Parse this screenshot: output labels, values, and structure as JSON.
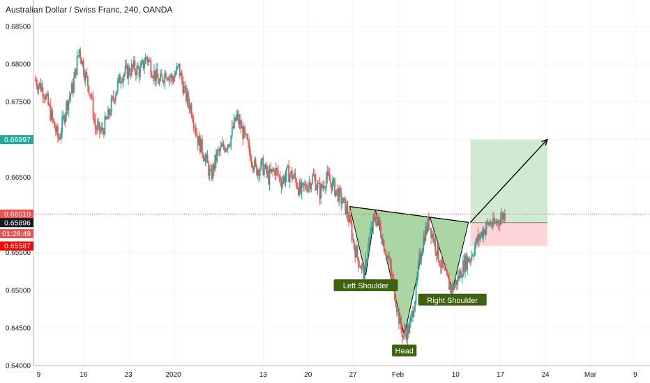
{
  "header": {
    "title": "Australian Dollar / Swiss Franc, 240, OANDA"
  },
  "chart_data": {
    "type": "candlestick",
    "symbol": "Australian Dollar / Swiss Franc",
    "timeframe": "240",
    "source": "OANDA",
    "ylim": [
      0.64,
      0.6885
    ],
    "y_ticks": [
      {
        "value": 0.64,
        "label": "0.64000"
      },
      {
        "value": 0.645,
        "label": "0.64500"
      },
      {
        "value": 0.65,
        "label": "0.65000"
      },
      {
        "value": 0.655,
        "label": "0.65500"
      },
      {
        "value": 0.66,
        "label": "0.66000"
      },
      {
        "value": 0.665,
        "label": "0.66500"
      },
      {
        "value": 0.67,
        "label": "0.67000"
      },
      {
        "value": 0.675,
        "label": "0.67500"
      },
      {
        "value": 0.68,
        "label": "0.68000"
      },
      {
        "value": 0.685,
        "label": "0.68500"
      }
    ],
    "x_ticks": [
      {
        "label": "9",
        "day": 0
      },
      {
        "label": "16",
        "day": 7
      },
      {
        "label": "23",
        "day": 14
      },
      {
        "label": "2020",
        "day": 21
      },
      {
        "label": "13",
        "day": 35
      },
      {
        "label": "20",
        "day": 42
      },
      {
        "label": "27",
        "day": 49
      },
      {
        "label": "Feb",
        "day": 56
      },
      {
        "label": "10",
        "day": 65
      },
      {
        "label": "17",
        "day": 72
      },
      {
        "label": "24",
        "day": 79
      },
      {
        "label": "Mar",
        "day": 86
      },
      {
        "label": "9",
        "day": 93
      }
    ],
    "x_range_days": [
      -0.8,
      95.3
    ],
    "price_path": [
      [
        -0.5,
        0.678
      ],
      [
        1.0,
        0.6765
      ],
      [
        2.5,
        0.672
      ],
      [
        3.3,
        0.67
      ],
      [
        4.5,
        0.6745
      ],
      [
        5.5,
        0.677
      ],
      [
        6.5,
        0.682
      ],
      [
        7.3,
        0.679
      ],
      [
        8.3,
        0.676
      ],
      [
        9.0,
        0.6715
      ],
      [
        10.0,
        0.671
      ],
      [
        11.0,
        0.673
      ],
      [
        12.0,
        0.676
      ],
      [
        13.0,
        0.6785
      ],
      [
        14.0,
        0.679
      ],
      [
        15.0,
        0.6795
      ],
      [
        16.0,
        0.679
      ],
      [
        17.0,
        0.681
      ],
      [
        18.0,
        0.679
      ],
      [
        19.0,
        0.6775
      ],
      [
        20.0,
        0.679
      ],
      [
        21.0,
        0.678
      ],
      [
        22.0,
        0.6795
      ],
      [
        23.0,
        0.676
      ],
      [
        24.0,
        0.674
      ],
      [
        25.0,
        0.67
      ],
      [
        26.0,
        0.668
      ],
      [
        27.0,
        0.665
      ],
      [
        28.0,
        0.668
      ],
      [
        29.0,
        0.669
      ],
      [
        30.0,
        0.67
      ],
      [
        31.0,
        0.673
      ],
      [
        32.0,
        0.671
      ],
      [
        33.0,
        0.6685
      ],
      [
        34.0,
        0.666
      ],
      [
        35.0,
        0.6665
      ],
      [
        36.0,
        0.665
      ],
      [
        37.0,
        0.666
      ],
      [
        38.0,
        0.6645
      ],
      [
        39.0,
        0.6655
      ],
      [
        40.0,
        0.665
      ],
      [
        41.0,
        0.663
      ],
      [
        42.0,
        0.664
      ],
      [
        43.0,
        0.665
      ],
      [
        44.0,
        0.663
      ],
      [
        45.0,
        0.665
      ],
      [
        46.0,
        0.664
      ],
      [
        47.0,
        0.6625
      ],
      [
        48.0,
        0.661
      ],
      [
        48.7,
        0.659
      ],
      [
        49.3,
        0.656
      ],
      [
        50.0,
        0.654
      ],
      [
        51.0,
        0.652
      ],
      [
        51.5,
        0.656
      ],
      [
        52.3,
        0.659
      ],
      [
        53.0,
        0.6595
      ],
      [
        54.0,
        0.656
      ],
      [
        55.0,
        0.653
      ],
      [
        56.0,
        0.648
      ],
      [
        56.6,
        0.645
      ],
      [
        57.0,
        0.644
      ],
      [
        58.0,
        0.645
      ],
      [
        59.0,
        0.65
      ],
      [
        59.5,
        0.654
      ],
      [
        60.3,
        0.6575
      ],
      [
        61.0,
        0.659
      ],
      [
        62.0,
        0.656
      ],
      [
        63.0,
        0.653
      ],
      [
        64.0,
        0.651
      ],
      [
        64.5,
        0.65
      ],
      [
        65.5,
        0.6515
      ],
      [
        66.5,
        0.6535
      ],
      [
        67.5,
        0.6545
      ],
      [
        68.5,
        0.6565
      ],
      [
        69.5,
        0.658
      ],
      [
        70.5,
        0.659
      ],
      [
        71.0,
        0.6585
      ],
      [
        72.0,
        0.6595
      ],
      [
        72.8,
        0.6601
      ]
    ],
    "price_labels": [
      {
        "value": 0.66997,
        "label": "0.66997",
        "color": "#26a69a"
      },
      {
        "value": 0.6601,
        "label": "0.66010",
        "color": "#ef5350"
      },
      {
        "value": 0.6575,
        "label": "01:26:49",
        "color": "#ef5350"
      },
      {
        "value": 0.65896,
        "label": "0.65896",
        "color": "#131722"
      },
      {
        "value": 0.65587,
        "label": "0.65587",
        "color": "#ff0000"
      }
    ],
    "current_price": 0.6601,
    "position": {
      "entry": 0.65896,
      "target": 0.66997,
      "stop": 0.65587,
      "start_day": 67.3,
      "end_day": 79.3
    },
    "pattern": {
      "name": "Inverse Head and Shoulders",
      "neckline": [
        [
          48.5,
          0.6611
        ],
        [
          67.0,
          0.659
        ]
      ],
      "points": {
        "left_shoulder": [
          51.0,
          0.652
        ],
        "head": [
          57.0,
          0.644
        ],
        "right_shoulder": [
          64.5,
          0.65
        ]
      },
      "labels": {
        "left_shoulder": "Left Shoulder",
        "head": "Head",
        "right_shoulder": "Right Shoulder"
      }
    },
    "projection_arrow": [
      [
        67.3,
        0.659
      ],
      [
        79.3,
        0.67
      ]
    ],
    "colors": {
      "up": "#26a69a",
      "down": "#ef5350",
      "pattern_fill": "#8dc886",
      "pattern_stroke": "#000000",
      "label_bg": "#3f6212",
      "target_zone": "#c8e6c9",
      "stop_zone": "#ffcdd2"
    }
  }
}
